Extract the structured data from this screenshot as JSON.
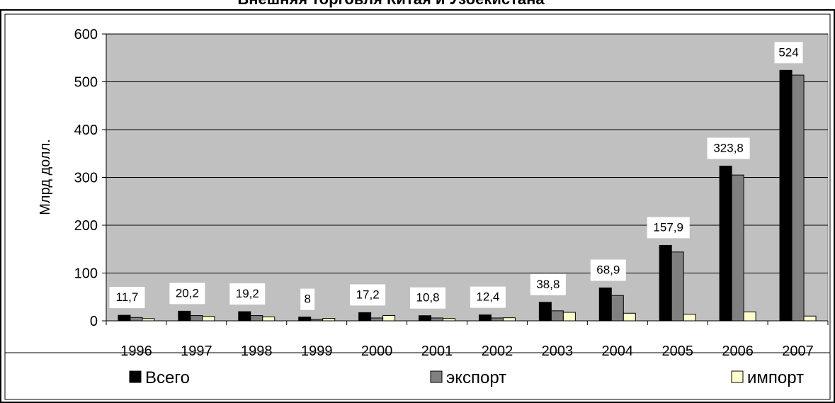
{
  "chart_data": {
    "type": "bar",
    "title": "Внешняя торговля Китая и Узбекистана",
    "ylabel": "Млрд долл.",
    "xlabel": "",
    "ylim": [
      0,
      600
    ],
    "yticks": [
      0,
      100,
      200,
      300,
      400,
      500,
      600
    ],
    "grid": true,
    "legend_position": "bottom",
    "categories": [
      "1996",
      "1997",
      "1998",
      "1999",
      "2000",
      "2001",
      "2002",
      "2003",
      "2004",
      "2005",
      "2006",
      "2007"
    ],
    "series": [
      {
        "name": "Всего",
        "color": "#000000",
        "values": [
          11.7,
          20.2,
          19.2,
          8,
          17.2,
          10.8,
          12.4,
          38.8,
          68.9,
          157.9,
          323.8,
          524
        ],
        "data_labels": [
          "11,7",
          "20,2",
          "19,2",
          "8",
          "17,2",
          "10,8",
          "12,4",
          "38,8",
          "68,9",
          "157,9",
          "323,8",
          "524"
        ]
      },
      {
        "name": "экспорт",
        "color": "#808080",
        "values": [
          7,
          11,
          11,
          3,
          6,
          6,
          6,
          21,
          53,
          144,
          305,
          514
        ]
      },
      {
        "name": "импорт",
        "color": "#ffffcc",
        "values": [
          4.7,
          9.2,
          8.2,
          5,
          11.2,
          4.8,
          6.4,
          17.8,
          15.9,
          13.9,
          18.8,
          10
        ]
      }
    ]
  }
}
